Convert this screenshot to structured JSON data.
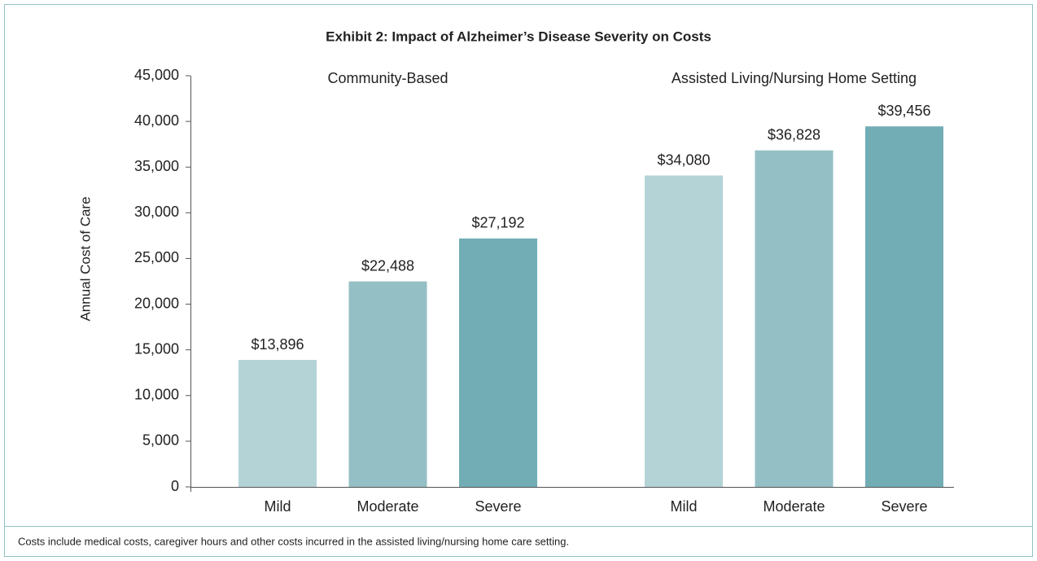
{
  "chart_data": {
    "type": "bar",
    "title": "Exhibit 2: Impact of Alzheimer’s Disease Severity on Costs",
    "ylabel": "Annual Cost of Care",
    "groups": [
      {
        "name": "Community-Based",
        "categories": [
          "Mild",
          "Moderate",
          "Severe"
        ],
        "values": [
          13896,
          22488,
          27192
        ],
        "value_labels": [
          "$13,896",
          "$22,488",
          "$27,192"
        ]
      },
      {
        "name": "Assisted Living/Nursing Home Setting",
        "categories": [
          "Mild",
          "Moderate",
          "Severe"
        ],
        "values": [
          34080,
          36828,
          39456
        ],
        "value_labels": [
          "$34,080",
          "$36,828",
          "$39,456"
        ]
      }
    ],
    "colors": [
      "#b3d3d7",
      "#94bfc5",
      "#72adb5"
    ],
    "ylim": [
      0,
      45000
    ],
    "yticks": [
      0,
      {
        "value": 5000,
        "label": "5,000"
      },
      {
        "value": 10000,
        "label": "10,000"
      },
      {
        "value": 15000,
        "label": "15,000"
      },
      {
        "value": 20000,
        "label": "20,000"
      },
      {
        "value": 25000,
        "label": "25,000"
      },
      {
        "value": 30000,
        "label": "30,000"
      },
      {
        "value": 35000,
        "label": "35,000"
      },
      {
        "value": 40000,
        "label": "40,000"
      },
      {
        "value": 45000,
        "label": "45,000"
      }
    ],
    "note": "Costs include medical costs, caregiver hours and other costs incurred in the assisted living/nursing home care setting."
  }
}
